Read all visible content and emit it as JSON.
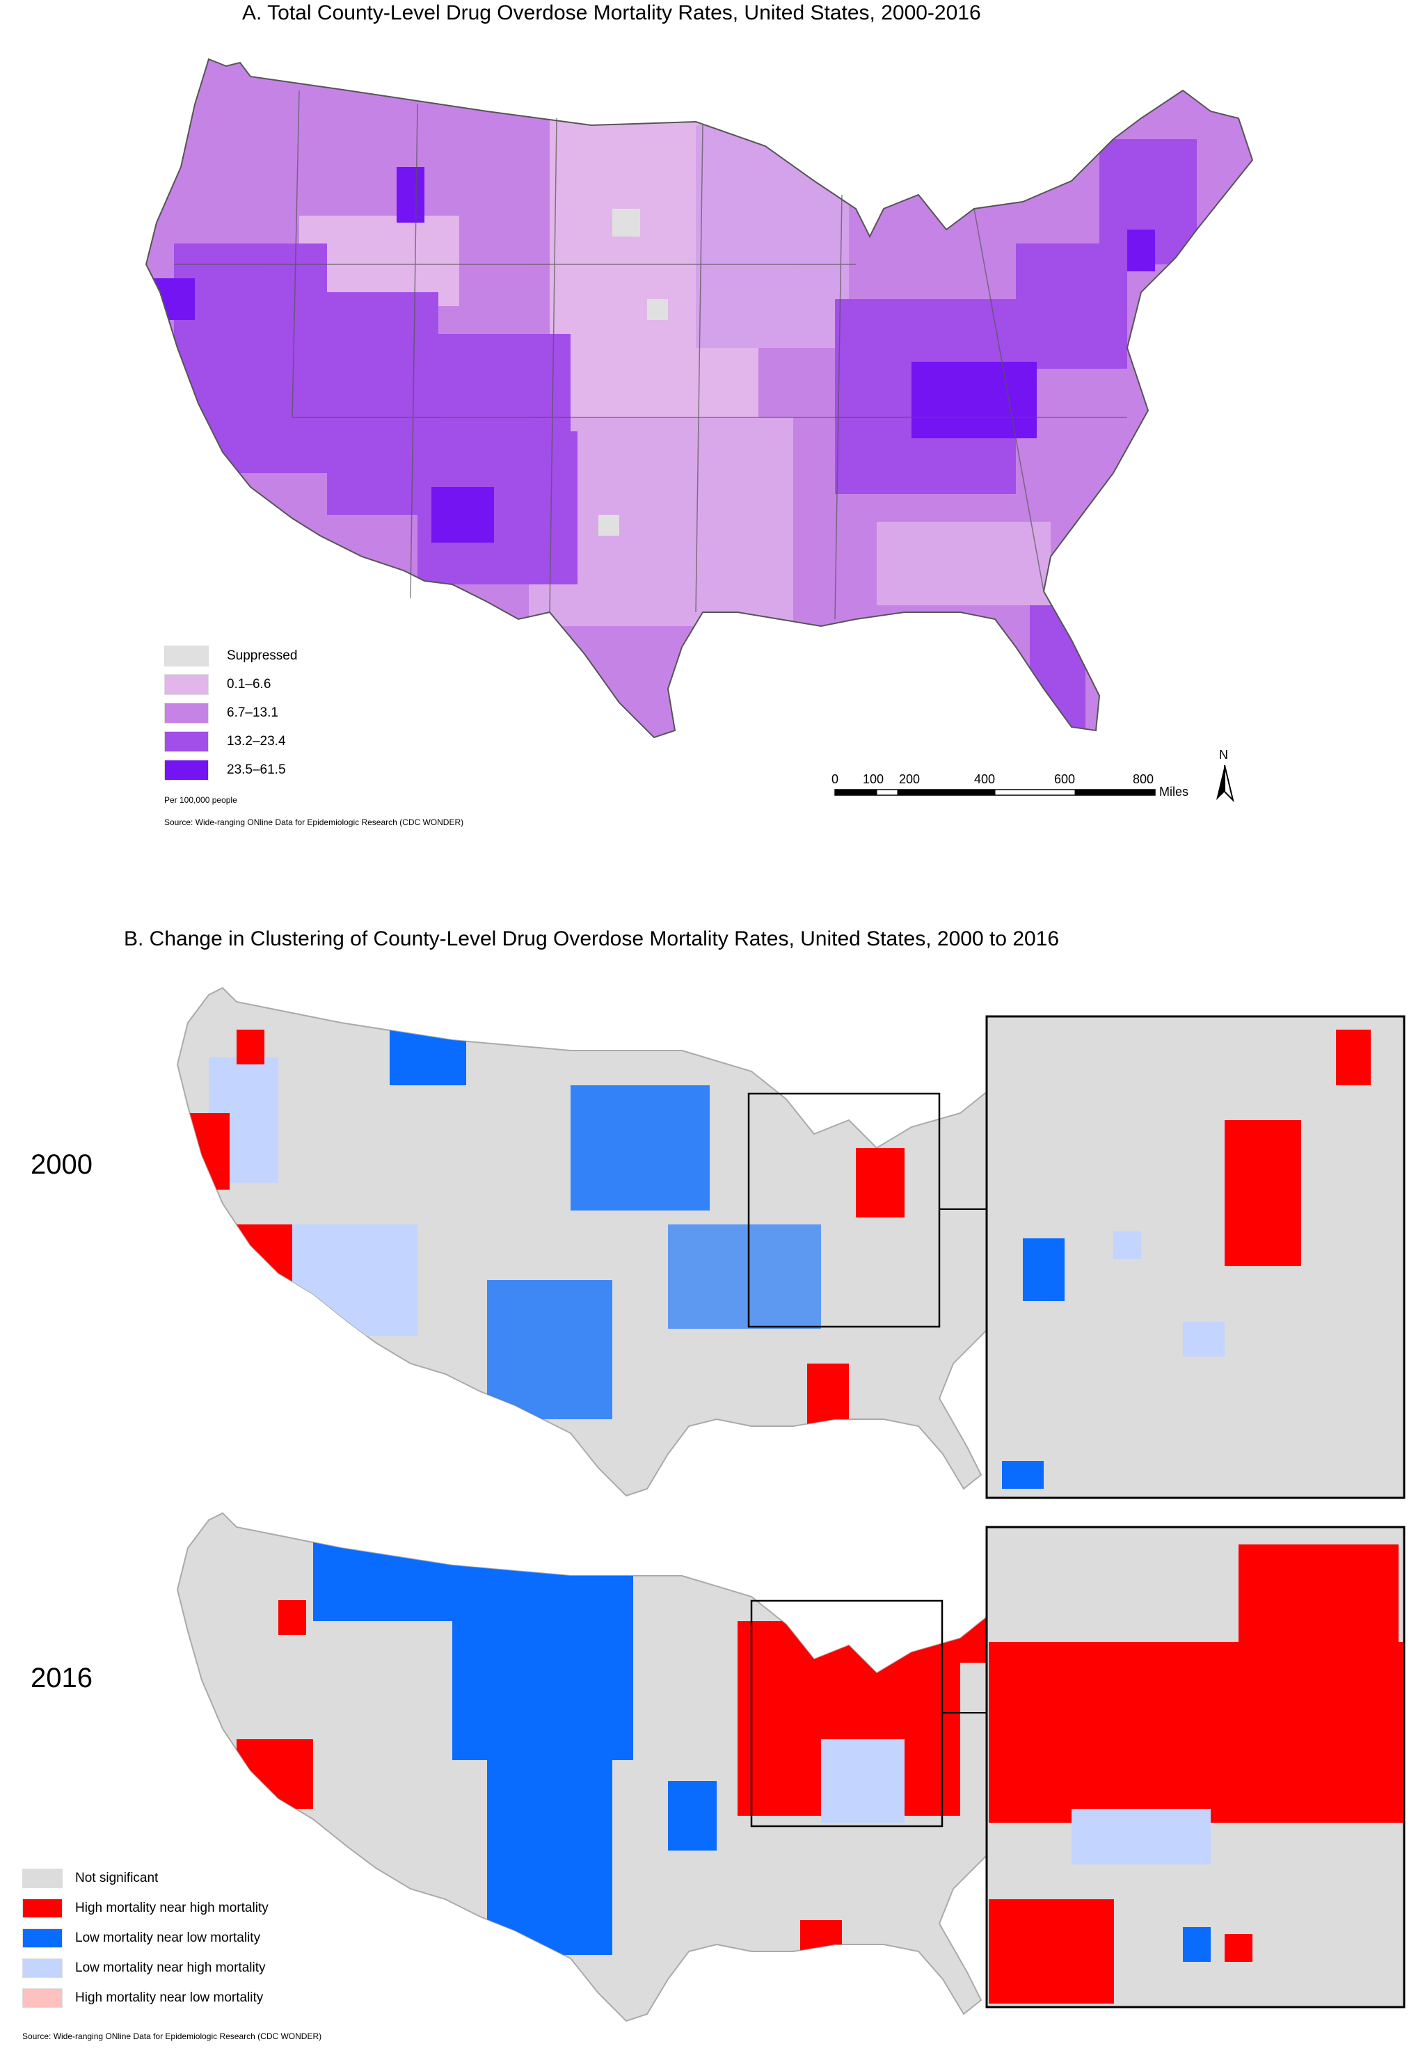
{
  "panel_a": {
    "title": "A. Total County-Level Drug Overdose Mortality Rates, United States, 2000-2016",
    "legend": [
      {
        "label": "Suppressed",
        "color": "#e0e0e0"
      },
      {
        "label": "0.1–6.6",
        "color": "#e2b6ea"
      },
      {
        "label": "6.7–13.1",
        "color": "#c683e6"
      },
      {
        "label": "13.2–23.4",
        "color": "#a24ee8"
      },
      {
        "label": "23.5–61.5",
        "color": "#7414f2"
      }
    ],
    "per_note": "Per 100,000 people",
    "source": "Source: Wide-ranging ONline Data for Epidemiologic Research (CDC WONDER)",
    "scale": {
      "ticks": [
        "0",
        "100",
        "200",
        "400",
        "600",
        "800"
      ],
      "unit": "Miles",
      "north": "N"
    }
  },
  "panel_b": {
    "title": "B. Change in Clustering of County-Level Drug Overdose Mortality Rates, United States, 2000 to 2016",
    "years": [
      "2000",
      "2016"
    ],
    "legend": [
      {
        "label": "Not significant",
        "color": "#dcdcdc"
      },
      {
        "label": "High mortality near high mortality",
        "color": "#ff0000"
      },
      {
        "label": "Low mortality near low mortality",
        "color": "#0a6cff"
      },
      {
        "label": "Low mortality near high mortality",
        "color": "#c3d4ff"
      },
      {
        "label": "High mortality near low mortality",
        "color": "#ffc0c0"
      }
    ],
    "source": "Source: Wide-ranging ONline Data for Epidemiologic Research (CDC WONDER)"
  }
}
